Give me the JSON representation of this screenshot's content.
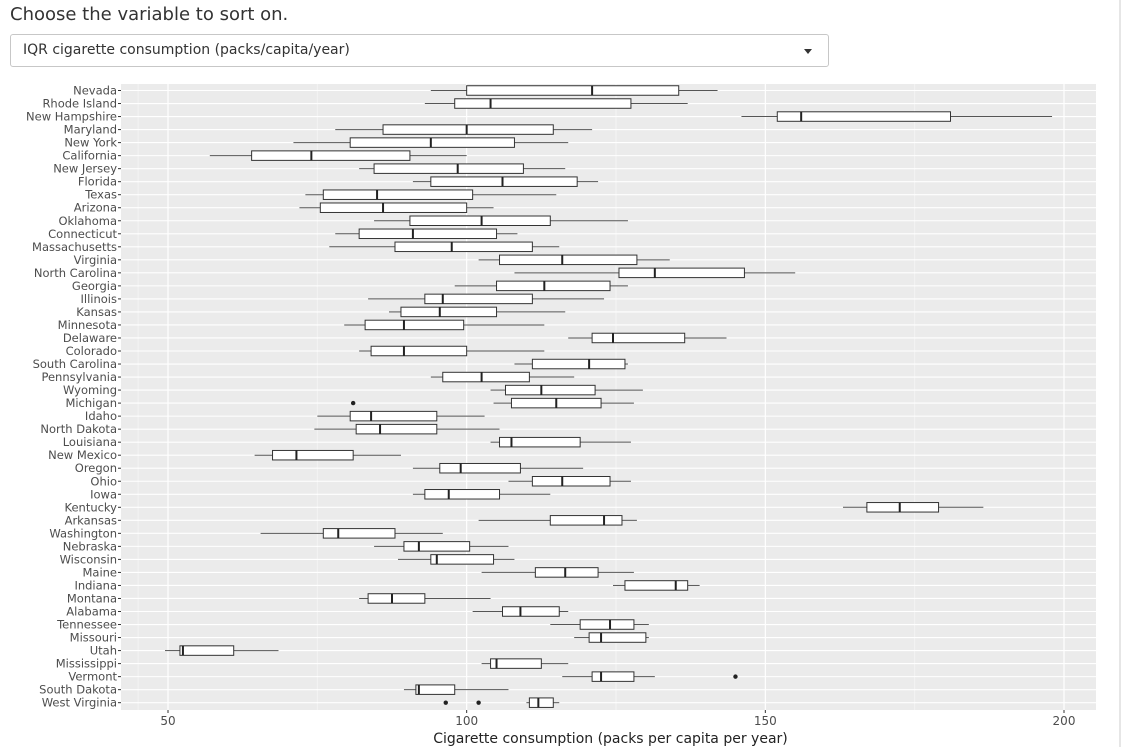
{
  "prompt": "Choose the variable to sort on.",
  "select": {
    "selected": "IQR cigarette consumption (packs/capita/year)",
    "icon": "chevron-down-icon"
  },
  "chart_data": {
    "type": "boxplot",
    "orientation": "horizontal",
    "xlabel": "Cigarette consumption (packs per capita per year)",
    "ylabel": "",
    "xlim": [
      40,
      205
    ],
    "xticks": [
      50,
      100,
      150,
      200
    ],
    "grid": true,
    "colors": {
      "panel": "#ebebeb",
      "grid_major": "#ffffff",
      "grid_minor": "#f4f4f4",
      "box": "#333333",
      "whisker": "#555555",
      "label": "#4d4d4d",
      "axis_title": "#222222"
    },
    "series": [
      {
        "state": "Nevada",
        "whislo": 94,
        "q1": 100,
        "med": 121,
        "q3": 135.5,
        "whishi": 142,
        "outliers": []
      },
      {
        "state": "Rhode Island",
        "whislo": 93,
        "q1": 98,
        "med": 104,
        "q3": 127.5,
        "whishi": 137,
        "outliers": []
      },
      {
        "state": "New Hampshire",
        "whislo": 146,
        "q1": 152,
        "med": 156,
        "q3": 181,
        "whishi": 198,
        "outliers": []
      },
      {
        "state": "Maryland",
        "whislo": 78,
        "q1": 86,
        "med": 100,
        "q3": 114.5,
        "whishi": 121,
        "outliers": []
      },
      {
        "state": "New York",
        "whislo": 71,
        "q1": 80.5,
        "med": 94,
        "q3": 108,
        "whishi": 117,
        "outliers": []
      },
      {
        "state": "California",
        "whislo": 57,
        "q1": 64,
        "med": 74,
        "q3": 90.5,
        "whishi": 100,
        "outliers": []
      },
      {
        "state": "New Jersey",
        "whislo": 82,
        "q1": 84.5,
        "med": 98.5,
        "q3": 109.5,
        "whishi": 116.5,
        "outliers": []
      },
      {
        "state": "Florida",
        "whislo": 91,
        "q1": 94,
        "med": 106,
        "q3": 118.5,
        "whishi": 122,
        "outliers": []
      },
      {
        "state": "Texas",
        "whislo": 73,
        "q1": 76,
        "med": 85,
        "q3": 101,
        "whishi": 115,
        "outliers": []
      },
      {
        "state": "Arizona",
        "whislo": 72,
        "q1": 75.5,
        "med": 86,
        "q3": 100,
        "whishi": 104.5,
        "outliers": []
      },
      {
        "state": "Oklahoma",
        "whislo": 84.5,
        "q1": 90.5,
        "med": 102.5,
        "q3": 114,
        "whishi": 127,
        "outliers": []
      },
      {
        "state": "Connecticut",
        "whislo": 78,
        "q1": 82,
        "med": 91,
        "q3": 105,
        "whishi": 108.5,
        "outliers": []
      },
      {
        "state": "Massachusetts",
        "whislo": 77,
        "q1": 88,
        "med": 97.5,
        "q3": 111,
        "whishi": 115.5,
        "outliers": []
      },
      {
        "state": "Virginia",
        "whislo": 102,
        "q1": 105.5,
        "med": 116,
        "q3": 128.5,
        "whishi": 134,
        "outliers": []
      },
      {
        "state": "North Carolina",
        "whislo": 108,
        "q1": 125.5,
        "med": 131.5,
        "q3": 146.5,
        "whishi": 155,
        "outliers": []
      },
      {
        "state": "Georgia",
        "whislo": 98,
        "q1": 105,
        "med": 113,
        "q3": 124,
        "whishi": 127,
        "outliers": []
      },
      {
        "state": "Illinois",
        "whislo": 83.5,
        "q1": 93,
        "med": 96,
        "q3": 111,
        "whishi": 123,
        "outliers": []
      },
      {
        "state": "Kansas",
        "whislo": 87,
        "q1": 89,
        "med": 95.5,
        "q3": 105,
        "whishi": 116.5,
        "outliers": []
      },
      {
        "state": "Minnesota",
        "whislo": 79.5,
        "q1": 83,
        "med": 89.5,
        "q3": 99.5,
        "whishi": 113,
        "outliers": []
      },
      {
        "state": "Delaware",
        "whislo": 117,
        "q1": 121,
        "med": 124.5,
        "q3": 136.5,
        "whishi": 143.5,
        "outliers": []
      },
      {
        "state": "Colorado",
        "whislo": 82,
        "q1": 84,
        "med": 89.5,
        "q3": 100,
        "whishi": 113,
        "outliers": []
      },
      {
        "state": "South Carolina",
        "whislo": 108,
        "q1": 111,
        "med": 120.5,
        "q3": 126.5,
        "whishi": 127,
        "outliers": []
      },
      {
        "state": "Pennsylvania",
        "whislo": 94,
        "q1": 96,
        "med": 102.5,
        "q3": 110.5,
        "whishi": 118,
        "outliers": []
      },
      {
        "state": "Wyoming",
        "whislo": 104,
        "q1": 106.5,
        "med": 112.5,
        "q3": 121.5,
        "whishi": 129.5,
        "outliers": []
      },
      {
        "state": "Michigan",
        "whislo": 104.5,
        "q1": 107.5,
        "med": 115,
        "q3": 122.5,
        "whishi": 128,
        "outliers": [
          81
        ]
      },
      {
        "state": "Idaho",
        "whislo": 75,
        "q1": 80.5,
        "med": 84,
        "q3": 95,
        "whishi": 103,
        "outliers": []
      },
      {
        "state": "North Dakota",
        "whislo": 74.5,
        "q1": 81.5,
        "med": 85.5,
        "q3": 95,
        "whishi": 105.5,
        "outliers": []
      },
      {
        "state": "Louisiana",
        "whislo": 104,
        "q1": 105.5,
        "med": 107.5,
        "q3": 119,
        "whishi": 127.5,
        "outliers": []
      },
      {
        "state": "New Mexico",
        "whislo": 64.5,
        "q1": 67.5,
        "med": 71.5,
        "q3": 81,
        "whishi": 89,
        "outliers": []
      },
      {
        "state": "Oregon",
        "whislo": 91,
        "q1": 95.5,
        "med": 99,
        "q3": 109,
        "whishi": 119.5,
        "outliers": []
      },
      {
        "state": "Ohio",
        "whislo": 107,
        "q1": 111,
        "med": 116,
        "q3": 124,
        "whishi": 127.5,
        "outliers": []
      },
      {
        "state": "Iowa",
        "whislo": 91,
        "q1": 93,
        "med": 97,
        "q3": 105.5,
        "whishi": 114,
        "outliers": []
      },
      {
        "state": "Kentucky",
        "whislo": 163,
        "q1": 167,
        "med": 172.5,
        "q3": 179,
        "whishi": 186.5,
        "outliers": []
      },
      {
        "state": "Arkansas",
        "whislo": 102,
        "q1": 114,
        "med": 123,
        "q3": 126,
        "whishi": 128.5,
        "outliers": []
      },
      {
        "state": "Washington",
        "whislo": 65.5,
        "q1": 76,
        "med": 78.5,
        "q3": 88,
        "whishi": 96,
        "outliers": []
      },
      {
        "state": "Nebraska",
        "whislo": 84.5,
        "q1": 89.5,
        "med": 92,
        "q3": 100.5,
        "whishi": 107,
        "outliers": []
      },
      {
        "state": "Wisconsin",
        "whislo": 88.5,
        "q1": 94,
        "med": 95,
        "q3": 104.5,
        "whishi": 108,
        "outliers": []
      },
      {
        "state": "Maine",
        "whislo": 102.5,
        "q1": 111.5,
        "med": 116.5,
        "q3": 122,
        "whishi": 128,
        "outliers": []
      },
      {
        "state": "Indiana",
        "whislo": 124.5,
        "q1": 126.5,
        "med": 135,
        "q3": 137,
        "whishi": 139,
        "outliers": []
      },
      {
        "state": "Montana",
        "whislo": 82,
        "q1": 83.5,
        "med": 87.5,
        "q3": 93,
        "whishi": 104,
        "outliers": []
      },
      {
        "state": "Alabama",
        "whislo": 101,
        "q1": 106,
        "med": 109,
        "q3": 115.5,
        "whishi": 117,
        "outliers": []
      },
      {
        "state": "Tennessee",
        "whislo": 114,
        "q1": 119,
        "med": 124,
        "q3": 128,
        "whishi": 130.5,
        "outliers": []
      },
      {
        "state": "Missouri",
        "whislo": 118,
        "q1": 120.5,
        "med": 122.5,
        "q3": 130,
        "whishi": 130.5,
        "outliers": []
      },
      {
        "state": "Utah",
        "whislo": 49.5,
        "q1": 52,
        "med": 52.5,
        "q3": 61,
        "whishi": 68.5,
        "outliers": []
      },
      {
        "state": "Mississippi",
        "whislo": 102.5,
        "q1": 104,
        "med": 105,
        "q3": 112.5,
        "whishi": 117,
        "outliers": []
      },
      {
        "state": "Vermont",
        "whislo": 116,
        "q1": 121,
        "med": 122.5,
        "q3": 128,
        "whishi": 131.5,
        "outliers": [
          145
        ]
      },
      {
        "state": "South Dakota",
        "whislo": 89.5,
        "q1": 91.5,
        "med": 92,
        "q3": 98,
        "whishi": 107,
        "outliers": []
      },
      {
        "state": "West Virginia",
        "whislo": 110,
        "q1": 110.5,
        "med": 112,
        "q3": 114.5,
        "whishi": 115.5,
        "outliers": [
          96.5,
          102
        ]
      }
    ]
  }
}
